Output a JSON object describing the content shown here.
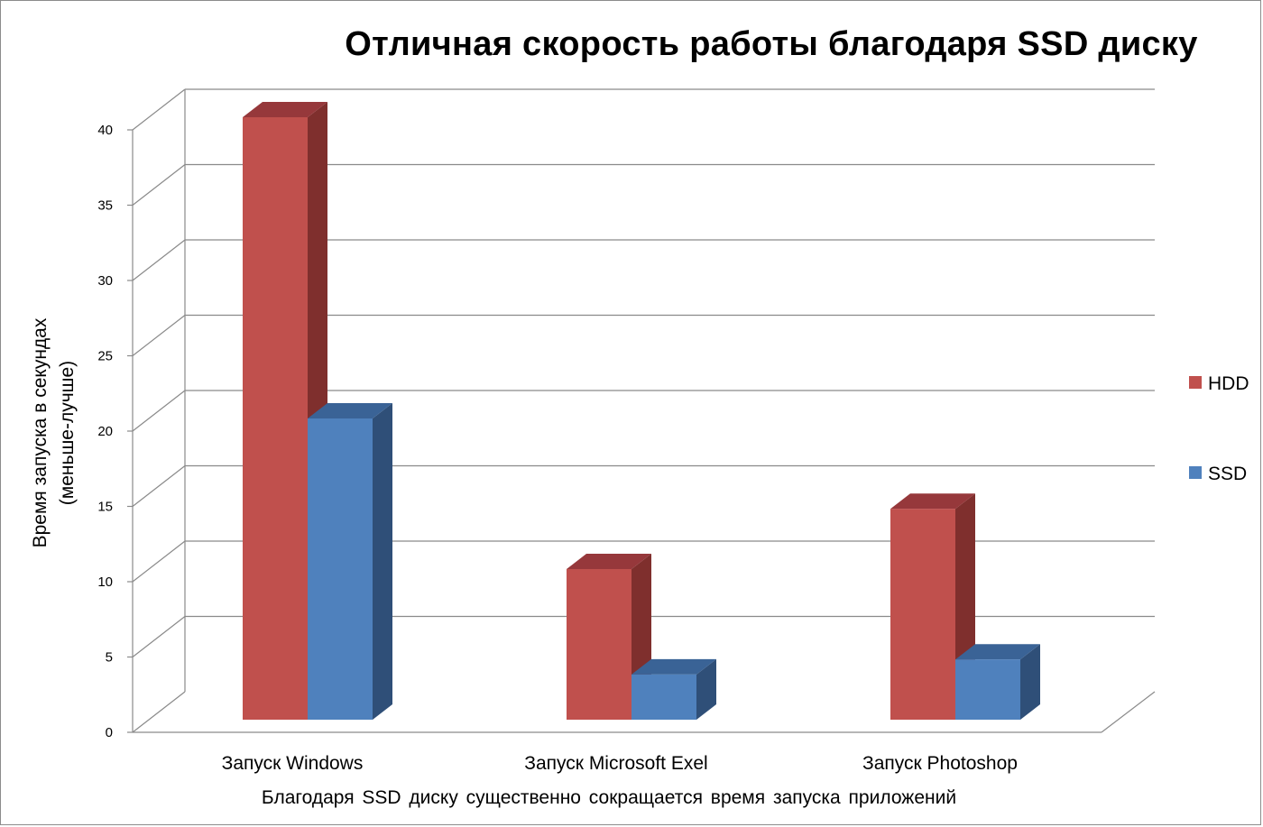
{
  "chart_data": {
    "type": "bar",
    "title": "Отличная скорость работы благодаря SSD диску",
    "xlabel": "Благодаря  SSD диску существенно сокращается время  запуска  приложений",
    "ylabel_line1": "Время запуска в секундах",
    "ylabel_line2": "(меньше-лучше)",
    "categories": [
      "Запуск Windows",
      "Запуск Microsoft Exel",
      "Запуск Photoshop"
    ],
    "series": [
      {
        "name": "HDD",
        "values": [
          40,
          10,
          14
        ],
        "color": "#c0504d",
        "side_color": "#7f2f2d",
        "top_color": "#96383b"
      },
      {
        "name": "SSD",
        "values": [
          20,
          3,
          4
        ],
        "color": "#4f81bd",
        "side_color": "#2f4f78",
        "top_color": "#3a6396"
      }
    ],
    "ylim": [
      0,
      40
    ],
    "yticks": [
      "0",
      "5",
      "10",
      "15",
      "20",
      "25",
      "30",
      "35",
      "40"
    ],
    "grid": true,
    "legend_position": "right",
    "style": "3d-clustered-column"
  }
}
